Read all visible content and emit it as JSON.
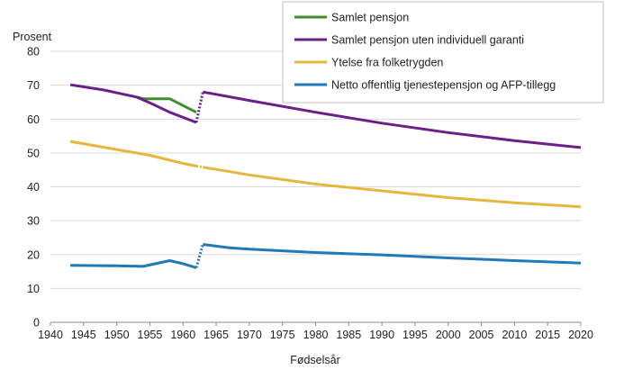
{
  "chart_data": {
    "type": "line",
    "ylabel": "Prosent",
    "xlabel": "Fødselsår",
    "xlim": [
      1940,
      2020
    ],
    "ylim": [
      0,
      80
    ],
    "xticks": [
      "1940",
      "1945",
      "1950",
      "1955",
      "1960",
      "1965",
      "1970",
      "1975",
      "1980",
      "1985",
      "1990",
      "1995",
      "2000",
      "2005",
      "2010",
      "2015",
      "2020"
    ],
    "yticks": [
      "0",
      "10",
      "20",
      "30",
      "40",
      "50",
      "60",
      "70",
      "80"
    ],
    "grid": "horizontal",
    "legend_position": "top-right",
    "series": [
      {
        "name": "Samlet pensjon",
        "color": "#3e8e2c",
        "x": [
          1953,
          1954,
          1958,
          1962
        ],
        "y": [
          66.5,
          66.0,
          66.0,
          62.0
        ]
      },
      {
        "name": "Samlet pensjon uten individuell garanti",
        "color": "#6a1f8a",
        "x": [
          1943,
          1948,
          1953,
          1955,
          1958,
          1962,
          1963,
          1965,
          1970,
          1980,
          1990,
          2000,
          2010,
          2020
        ],
        "y": [
          70.1,
          68.6,
          66.5,
          64.8,
          62.0,
          59.0,
          68.0,
          67.3,
          65.5,
          62.0,
          58.8,
          56.0,
          53.6,
          51.6
        ],
        "gap_after_index": 5
      },
      {
        "name": "Ytelse fra folketrygden",
        "color": "#e6b73f",
        "x": [
          1943,
          1950,
          1955,
          1960,
          1962,
          1963,
          1970,
          1980,
          1990,
          2000,
          2010,
          2020
        ],
        "y": [
          53.4,
          51.0,
          49.3,
          46.9,
          46.1,
          45.8,
          43.5,
          40.8,
          38.8,
          36.8,
          35.3,
          34.1
        ],
        "gap_after_index": 4
      },
      {
        "name": "Netto offentlig tjenestepensjon og AFP-tillegg",
        "color": "#2179b8",
        "x": [
          1943,
          1950,
          1954,
          1958,
          1960,
          1962,
          1963,
          1967,
          1970,
          1980,
          1990,
          2000,
          2010,
          2020
        ],
        "y": [
          16.8,
          16.7,
          16.5,
          18.2,
          17.3,
          16.1,
          23.0,
          22.0,
          21.6,
          20.6,
          19.9,
          19.0,
          18.2,
          17.5
        ],
        "gap_after_index": 5
      }
    ]
  }
}
